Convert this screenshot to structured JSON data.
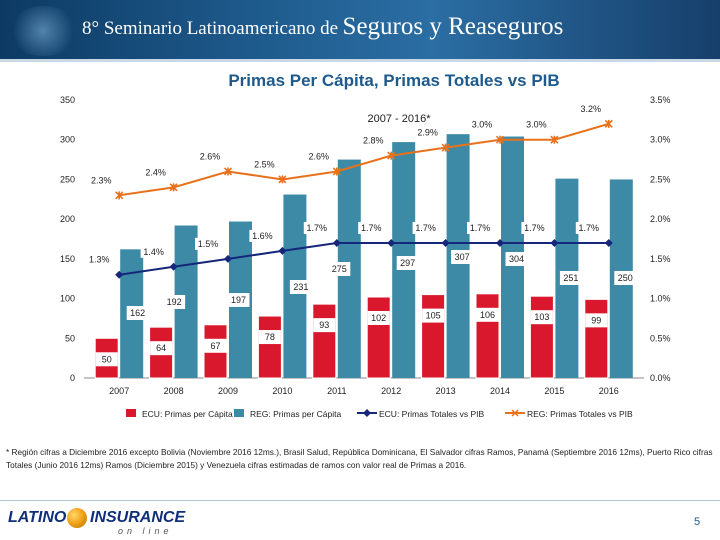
{
  "header": {
    "title_part1": "8° Seminario Latinoamericano de",
    "title_part2": "Seguros y Reaseguros"
  },
  "chart_data": {
    "type": "bar",
    "title": "Primas Per Cápita, Primas Totales vs PIB",
    "subtitle": "2007 - 2016*",
    "categories": [
      "2007",
      "2008",
      "2009",
      "2010",
      "2011",
      "2012",
      "2013",
      "2014",
      "2015",
      "2016"
    ],
    "y_left": {
      "min": 0,
      "max": 350,
      "ticks": [
        0,
        50,
        100,
        150,
        200,
        250,
        300,
        350
      ]
    },
    "y_right": {
      "min": 0,
      "max": 3.5,
      "tick_labels": [
        "0.0%",
        "0.5%",
        "1.0%",
        "1.5%",
        "2.0%",
        "2.5%",
        "3.0%",
        "3.5%"
      ]
    },
    "series": [
      {
        "name": "ECU: Primas per Cápita",
        "kind": "bar",
        "axis": "left",
        "color": "#d9182d",
        "values": [
          50,
          64,
          67,
          78,
          93,
          102,
          105,
          106,
          103,
          99
        ],
        "labels": [
          "50",
          "64",
          "67",
          "78",
          "93",
          "102",
          "105",
          "106",
          "103",
          "99"
        ]
      },
      {
        "name": "REG: Primas per Cápita",
        "kind": "bar",
        "axis": "left",
        "color": "#3d8aa6",
        "values": [
          162,
          192,
          197,
          231,
          275,
          297,
          307,
          304,
          251,
          250
        ],
        "labels": [
          "162",
          "192",
          "197",
          "231",
          "275",
          "297",
          "307",
          "304",
          "251",
          "250"
        ]
      },
      {
        "name": "ECU: Primas Totales vs PIB",
        "kind": "line",
        "axis": "right",
        "color": "#16267a",
        "values": [
          1.3,
          1.4,
          1.5,
          1.6,
          1.7,
          1.7,
          1.7,
          1.7,
          1.7,
          1.7
        ],
        "labels": [
          "1.3%",
          "1.4%",
          "1.5%",
          "1.6%",
          "1.7%",
          "1.7%",
          "1.7%",
          "1.7%",
          "1.7%",
          "1.7%"
        ]
      },
      {
        "name": "REG: Primas Totales vs PIB",
        "kind": "line",
        "axis": "right",
        "color": "#e8711c",
        "values": [
          2.3,
          2.4,
          2.6,
          2.5,
          2.6,
          2.8,
          2.9,
          3.0,
          3.0,
          3.2
        ],
        "labels": [
          "2.3%",
          "2.4%",
          "2.6%",
          "2.5%",
          "2.6%",
          "2.8%",
          "2.9%",
          "3.0%",
          "3.0%",
          "3.2%"
        ]
      }
    ],
    "legend": {
      "position": "bottom",
      "items": [
        "ECU: Primas per Cápita",
        "REG: Primas per Cápita",
        "ECU: Primas Totales vs PIB",
        "REG: Primas Totales vs PIB"
      ]
    }
  },
  "footnote": "* Región cifras a Diciembre 2016 excepto Bolivia (Noviembre 2016 12ms.), Brasil Salud, República Dominicana, El Salvador cifras Ramos, Panamá (Septiembre 2016 12ms), Puerto Rico cifras Totales (Junio 2016 12ms) Ramos (Diciembre 2015) y Venezuela cifras estimadas de ramos con valor real de Primas a 2016.",
  "logo": {
    "left": "LATINO",
    "right": "INSURANCE",
    "sub": "on line"
  },
  "page_number": "5",
  "colors": {
    "header": "#1e5a8c",
    "ecu_bar": "#d9182d",
    "reg_bar": "#3d8aa6",
    "ecu_line": "#16267a",
    "reg_line": "#e8711c"
  }
}
